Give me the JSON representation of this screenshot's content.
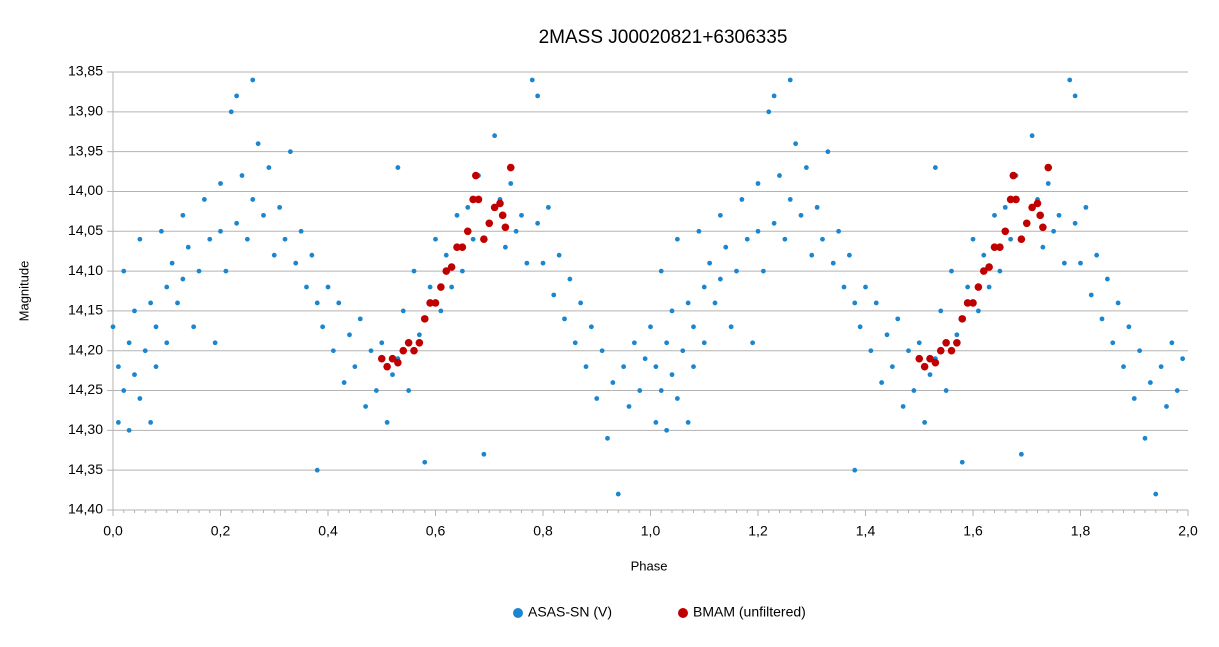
{
  "chart_data": {
    "type": "scatter",
    "title": "2MASS J00020821+6306335",
    "x_label": "Phase",
    "y_label": "Magnitude",
    "xlim": [
      0,
      2
    ],
    "ylim": [
      13.85,
      14.4
    ],
    "y_inverted": true,
    "grid": true,
    "legend": "bottom",
    "xticks": [
      {
        "value": 0,
        "label": "0,0"
      },
      {
        "value": 0.2,
        "label": "0,2"
      },
      {
        "value": 0.4,
        "label": "0,4"
      },
      {
        "value": 0.6,
        "label": "0,6"
      },
      {
        "value": 0.8,
        "label": "0,8"
      },
      {
        "value": 1,
        "label": "1,0"
      },
      {
        "value": 1.2,
        "label": "1,2"
      },
      {
        "value": 1.4,
        "label": "1,4"
      },
      {
        "value": 1.6,
        "label": "1,6"
      },
      {
        "value": 1.8,
        "label": "1,8"
      },
      {
        "value": 2,
        "label": "2,0"
      }
    ],
    "yticks": [
      {
        "value": 13.85,
        "label": "13,85"
      },
      {
        "value": 13.9,
        "label": "13,90"
      },
      {
        "value": 13.95,
        "label": "13,95"
      },
      {
        "value": 14,
        "label": "14,00"
      },
      {
        "value": 14.05,
        "label": "14,05"
      },
      {
        "value": 14.1,
        "label": "14,10"
      },
      {
        "value": 14.15,
        "label": "14,15"
      },
      {
        "value": 14.2,
        "label": "14,20"
      },
      {
        "value": 14.25,
        "label": "14,25"
      },
      {
        "value": 14.3,
        "label": "14,30"
      },
      {
        "value": 14.35,
        "label": "14,35"
      },
      {
        "value": 14.4,
        "label": "14,40"
      }
    ],
    "series": [
      {
        "name": "ASAS-SN (V)",
        "color": "#1a86d0",
        "x": [
          0.0,
          0.01,
          0.01,
          0.02,
          0.02,
          0.03,
          0.03,
          0.04,
          0.04,
          0.05,
          0.05,
          0.06,
          0.07,
          0.07,
          0.08,
          0.08,
          0.09,
          0.1,
          0.1,
          0.11,
          0.12,
          0.13,
          0.13,
          0.14,
          0.15,
          0.16,
          0.17,
          0.18,
          0.19,
          0.2,
          0.2,
          0.21,
          0.22,
          0.23,
          0.23,
          0.24,
          0.25,
          0.26,
          0.26,
          0.27,
          0.28,
          0.29,
          0.3,
          0.31,
          0.32,
          0.33,
          0.34,
          0.35,
          0.36,
          0.37,
          0.38,
          0.38,
          0.39,
          0.4,
          0.41,
          0.42,
          0.43,
          0.44,
          0.45,
          0.46,
          0.47,
          0.48,
          0.49,
          0.5,
          0.51,
          0.52,
          0.53,
          0.53,
          0.54,
          0.55,
          0.56,
          0.57,
          0.58,
          0.59,
          0.6,
          0.61,
          0.62,
          0.63,
          0.64,
          0.65,
          0.66,
          0.67,
          0.68,
          0.69,
          0.7,
          0.71,
          0.72,
          0.73,
          0.74,
          0.75,
          0.76,
          0.77,
          0.78,
          0.79,
          0.79,
          0.8,
          0.81,
          0.82,
          0.83,
          0.84,
          0.85,
          0.86,
          0.87,
          0.88,
          0.89,
          0.9,
          0.91,
          0.92,
          0.93,
          0.94,
          0.95,
          0.96,
          0.97,
          0.98,
          0.99,
          1.0,
          1.01,
          1.01,
          1.02,
          1.02,
          1.03,
          1.03,
          1.04,
          1.04,
          1.05,
          1.05,
          1.06,
          1.07,
          1.07,
          1.08,
          1.08,
          1.09,
          1.1,
          1.1,
          1.11,
          1.12,
          1.13,
          1.13,
          1.14,
          1.15,
          1.16,
          1.17,
          1.18,
          1.19,
          1.2,
          1.2,
          1.21,
          1.22,
          1.23,
          1.23,
          1.24,
          1.25,
          1.26,
          1.26,
          1.27,
          1.28,
          1.29,
          1.3,
          1.31,
          1.32,
          1.33,
          1.34,
          1.35,
          1.36,
          1.37,
          1.38,
          1.38,
          1.39,
          1.4,
          1.41,
          1.42,
          1.43,
          1.44,
          1.45,
          1.46,
          1.47,
          1.48,
          1.49,
          1.5,
          1.51,
          1.52,
          1.53,
          1.53,
          1.54,
          1.55,
          1.56,
          1.57,
          1.58,
          1.59,
          1.6,
          1.61,
          1.62,
          1.63,
          1.64,
          1.65,
          1.66,
          1.67,
          1.68,
          1.69,
          1.7,
          1.71,
          1.72,
          1.73,
          1.74,
          1.75,
          1.76,
          1.77,
          1.78,
          1.79,
          1.79,
          1.8,
          1.81,
          1.82,
          1.83,
          1.84,
          1.85,
          1.86,
          1.87,
          1.88,
          1.89,
          1.9,
          1.91,
          1.92,
          1.93,
          1.94,
          1.95,
          1.96,
          1.97,
          1.98,
          1.99
        ],
        "values": [
          14.17,
          14.29,
          14.22,
          14.1,
          14.25,
          14.19,
          14.3,
          14.15,
          14.23,
          14.06,
          14.26,
          14.2,
          14.14,
          14.29,
          14.17,
          14.22,
          14.05,
          14.12,
          14.19,
          14.09,
          14.14,
          14.03,
          14.11,
          14.07,
          14.17,
          14.1,
          14.01,
          14.06,
          14.19,
          13.99,
          14.05,
          14.1,
          13.9,
          13.88,
          14.04,
          13.98,
          14.06,
          13.86,
          14.01,
          13.94,
          14.03,
          13.97,
          14.08,
          14.02,
          14.06,
          13.95,
          14.09,
          14.05,
          14.12,
          14.08,
          14.14,
          14.35,
          14.17,
          14.12,
          14.2,
          14.14,
          14.24,
          14.18,
          14.22,
          14.16,
          14.27,
          14.2,
          14.25,
          14.19,
          14.29,
          14.23,
          13.97,
          14.21,
          14.15,
          14.25,
          14.1,
          14.18,
          14.34,
          14.12,
          14.06,
          14.15,
          14.08,
          14.12,
          14.03,
          14.1,
          14.02,
          14.06,
          13.98,
          14.33,
          14.04,
          13.93,
          14.01,
          14.07,
          13.99,
          14.05,
          14.03,
          14.09,
          13.86,
          13.88,
          14.04,
          14.09,
          14.02,
          14.13,
          14.08,
          14.16,
          14.11,
          14.19,
          14.14,
          14.22,
          14.17,
          14.26,
          14.2,
          14.31,
          14.24,
          14.38,
          14.22,
          14.27,
          14.19,
          14.25,
          14.21,
          14.17,
          14.29,
          14.22,
          14.1,
          14.25,
          14.19,
          14.3,
          14.15,
          14.23,
          14.06,
          14.26,
          14.2,
          14.14,
          14.29,
          14.17,
          14.22,
          14.05,
          14.12,
          14.19,
          14.09,
          14.14,
          14.03,
          14.11,
          14.07,
          14.17,
          14.1,
          14.01,
          14.06,
          14.19,
          13.99,
          14.05,
          14.1,
          13.9,
          13.88,
          14.04,
          13.98,
          14.06,
          13.86,
          14.01,
          13.94,
          14.03,
          13.97,
          14.08,
          14.02,
          14.06,
          13.95,
          14.09,
          14.05,
          14.12,
          14.08,
          14.14,
          14.35,
          14.17,
          14.12,
          14.2,
          14.14,
          14.24,
          14.18,
          14.22,
          14.16,
          14.27,
          14.2,
          14.25,
          14.19,
          14.29,
          14.23,
          13.97,
          14.21,
          14.15,
          14.25,
          14.1,
          14.18,
          14.34,
          14.12,
          14.06,
          14.15,
          14.08,
          14.12,
          14.03,
          14.1,
          14.02,
          14.06,
          13.98,
          14.33,
          14.04,
          13.93,
          14.01,
          14.07,
          13.99,
          14.05,
          14.03,
          14.09,
          13.86,
          13.88,
          14.04,
          14.09,
          14.02,
          14.13,
          14.08,
          14.16,
          14.11,
          14.19,
          14.14,
          14.22,
          14.17,
          14.26,
          14.2,
          14.31,
          14.24,
          14.38,
          14.22,
          14.27,
          14.19,
          14.25,
          14.21
        ]
      },
      {
        "name": "BMAM (unfiltered)",
        "color": "#c00000",
        "x": [
          0.5,
          0.51,
          0.52,
          0.53,
          0.54,
          0.55,
          0.56,
          0.57,
          0.58,
          0.59,
          0.6,
          0.61,
          0.62,
          0.63,
          0.64,
          0.65,
          0.66,
          0.67,
          0.675,
          0.68,
          0.69,
          0.7,
          0.71,
          0.72,
          0.725,
          0.73,
          0.74,
          1.5,
          1.51,
          1.52,
          1.53,
          1.54,
          1.55,
          1.56,
          1.57,
          1.58,
          1.59,
          1.6,
          1.61,
          1.62,
          1.63,
          1.64,
          1.65,
          1.66,
          1.67,
          1.675,
          1.68,
          1.69,
          1.7,
          1.71,
          1.72,
          1.725,
          1.73,
          1.74
        ],
        "values": [
          14.21,
          14.22,
          14.21,
          14.215,
          14.2,
          14.19,
          14.2,
          14.19,
          14.16,
          14.14,
          14.14,
          14.12,
          14.1,
          14.095,
          14.07,
          14.07,
          14.05,
          14.01,
          13.98,
          14.01,
          14.06,
          14.04,
          14.02,
          14.015,
          14.03,
          14.045,
          13.97,
          14.21,
          14.22,
          14.21,
          14.215,
          14.2,
          14.19,
          14.2,
          14.19,
          14.16,
          14.14,
          14.14,
          14.12,
          14.1,
          14.095,
          14.07,
          14.07,
          14.05,
          14.01,
          13.98,
          14.01,
          14.06,
          14.04,
          14.02,
          14.015,
          14.03,
          14.045,
          13.97
        ]
      }
    ]
  }
}
